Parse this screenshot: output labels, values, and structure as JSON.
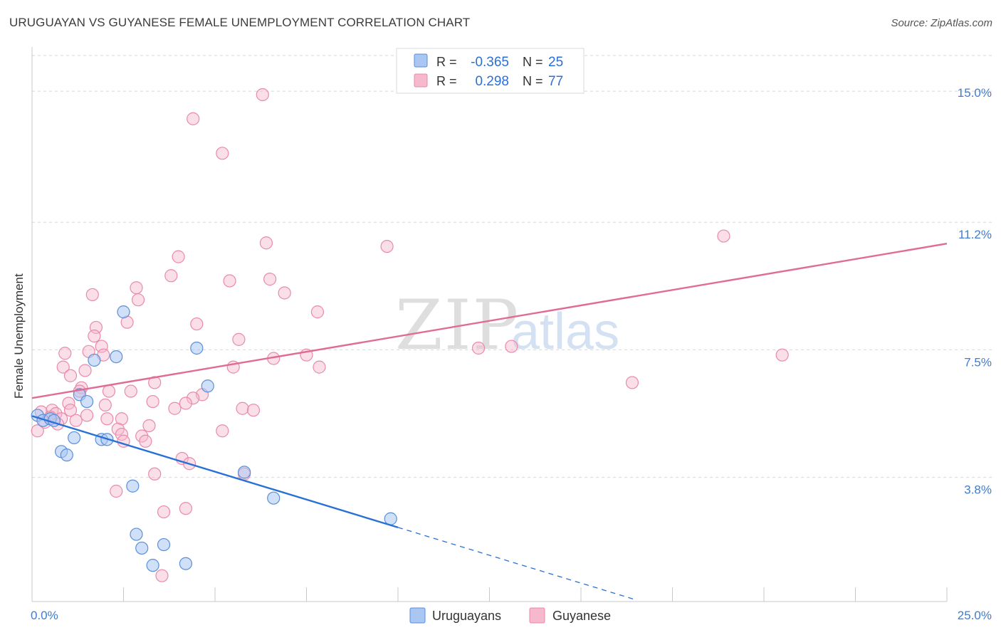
{
  "title": "URUGUAYAN VS GUYANESE FEMALE UNEMPLOYMENT CORRELATION CHART",
  "source": "Source: ZipAtlas.com",
  "watermark": {
    "part1": "ZIP",
    "part2": "atlas"
  },
  "colors": {
    "blue": "#2970d6",
    "blue_fill": "#a9c7f2",
    "blue_stroke": "#5a8fd8",
    "pink": "#e06b95",
    "pink_fill": "#f6b8cc",
    "pink_stroke": "#e98aa9",
    "axis_label": "#3f7bd0",
    "grid": "#d6d6d6"
  },
  "chart_data": {
    "type": "scatter",
    "title": "URUGUAYAN VS GUYANESE FEMALE UNEMPLOYMENT CORRELATION CHART",
    "xlabel": "",
    "ylabel": "Female Unemployment",
    "xlim": [
      0,
      25
    ],
    "ylim": [
      0.2,
      16.2
    ],
    "x_tick_labels": [
      {
        "value": 0,
        "label": "0.0%"
      },
      {
        "value": 25,
        "label": "25.0%"
      }
    ],
    "y_ticks": [
      {
        "value": 3.8,
        "label": "3.8%"
      },
      {
        "value": 7.5,
        "label": "7.5%"
      },
      {
        "value": 11.2,
        "label": "11.2%"
      },
      {
        "value": 15.0,
        "label": "15.0%"
      }
    ],
    "legend": {
      "position": "top-center",
      "rows": [
        {
          "r_label": "R =",
          "r_value": "-0.365",
          "n_label": "N =",
          "n_value": "25"
        },
        {
          "r_label": "R =",
          "r_value": "0.298",
          "n_label": "N =",
          "n_value": "77"
        }
      ]
    },
    "bottom_legend": [
      "Uruguayans",
      "Guyanese"
    ],
    "series": [
      {
        "name": "Uruguayans",
        "r": -0.365,
        "n": 25,
        "trend": {
          "x0": 0,
          "y0": 5.58,
          "x1": 10,
          "y1": 2.35,
          "dashed_to_x": 16.5
        },
        "points": [
          [
            0.15,
            5.6
          ],
          [
            0.3,
            5.45
          ],
          [
            0.5,
            5.5
          ],
          [
            0.6,
            5.45
          ],
          [
            0.8,
            4.55
          ],
          [
            0.95,
            4.45
          ],
          [
            1.15,
            4.95
          ],
          [
            1.3,
            6.2
          ],
          [
            1.5,
            6.0
          ],
          [
            1.7,
            7.2
          ],
          [
            1.9,
            4.9
          ],
          [
            2.05,
            4.9
          ],
          [
            2.5,
            8.6
          ],
          [
            2.3,
            7.3
          ],
          [
            2.75,
            3.55
          ],
          [
            2.85,
            2.15
          ],
          [
            3.0,
            1.75
          ],
          [
            3.3,
            1.25
          ],
          [
            3.6,
            1.85
          ],
          [
            4.2,
            1.3
          ],
          [
            4.5,
            7.55
          ],
          [
            4.8,
            6.45
          ],
          [
            5.8,
            3.95
          ],
          [
            6.6,
            3.2
          ],
          [
            9.8,
            2.6
          ]
        ]
      },
      {
        "name": "Guyanese",
        "r": 0.298,
        "n": 77,
        "trend": {
          "x0": 0,
          "y0": 6.1,
          "x1": 25,
          "y1": 10.58
        },
        "points": [
          [
            6.3,
            14.9
          ],
          [
            4.4,
            14.2
          ],
          [
            5.2,
            13.2
          ],
          [
            18.9,
            10.8
          ],
          [
            6.4,
            10.6
          ],
          [
            9.7,
            10.5
          ],
          [
            4.0,
            10.2
          ],
          [
            3.8,
            9.65
          ],
          [
            5.4,
            9.5
          ],
          [
            6.5,
            9.55
          ],
          [
            2.85,
            9.3
          ],
          [
            6.9,
            9.15
          ],
          [
            1.65,
            9.1
          ],
          [
            2.9,
            8.95
          ],
          [
            7.8,
            8.6
          ],
          [
            2.6,
            8.3
          ],
          [
            4.5,
            8.25
          ],
          [
            1.75,
            8.15
          ],
          [
            1.7,
            7.9
          ],
          [
            5.65,
            7.8
          ],
          [
            1.9,
            7.6
          ],
          [
            12.2,
            7.55
          ],
          [
            13.1,
            7.6
          ],
          [
            0.9,
            7.4
          ],
          [
            1.55,
            7.45
          ],
          [
            1.95,
            7.35
          ],
          [
            7.5,
            7.35
          ],
          [
            6.6,
            7.25
          ],
          [
            20.5,
            7.35
          ],
          [
            0.85,
            7.0
          ],
          [
            5.5,
            7.0
          ],
          [
            7.85,
            7.0
          ],
          [
            1.45,
            6.9
          ],
          [
            1.05,
            6.75
          ],
          [
            3.35,
            6.55
          ],
          [
            16.4,
            6.55
          ],
          [
            1.35,
            6.4
          ],
          [
            1.3,
            6.3
          ],
          [
            2.1,
            6.3
          ],
          [
            2.7,
            6.3
          ],
          [
            4.65,
            6.2
          ],
          [
            4.4,
            6.1
          ],
          [
            3.3,
            6.0
          ],
          [
            1.0,
            5.95
          ],
          [
            4.2,
            5.95
          ],
          [
            3.9,
            5.8
          ],
          [
            5.75,
            5.8
          ],
          [
            6.05,
            5.75
          ],
          [
            0.55,
            5.75
          ],
          [
            1.05,
            5.75
          ],
          [
            0.65,
            5.65
          ],
          [
            0.25,
            5.7
          ],
          [
            0.5,
            5.55
          ],
          [
            0.8,
            5.5
          ],
          [
            2.05,
            5.5
          ],
          [
            2.45,
            5.5
          ],
          [
            1.2,
            5.45
          ],
          [
            0.35,
            5.4
          ],
          [
            3.2,
            5.3
          ],
          [
            2.35,
            5.2
          ],
          [
            5.2,
            5.15
          ],
          [
            0.15,
            5.15
          ],
          [
            3.0,
            5.0
          ],
          [
            2.45,
            5.05
          ],
          [
            3.1,
            4.85
          ],
          [
            2.5,
            4.85
          ],
          [
            4.1,
            4.35
          ],
          [
            4.3,
            4.2
          ],
          [
            3.35,
            3.9
          ],
          [
            5.8,
            3.9
          ],
          [
            2.3,
            3.4
          ],
          [
            4.2,
            2.9
          ],
          [
            3.6,
            2.8
          ],
          [
            3.55,
            0.95
          ],
          [
            1.5,
            5.6
          ],
          [
            0.7,
            5.35
          ],
          [
            2.0,
            5.9
          ]
        ]
      }
    ]
  }
}
